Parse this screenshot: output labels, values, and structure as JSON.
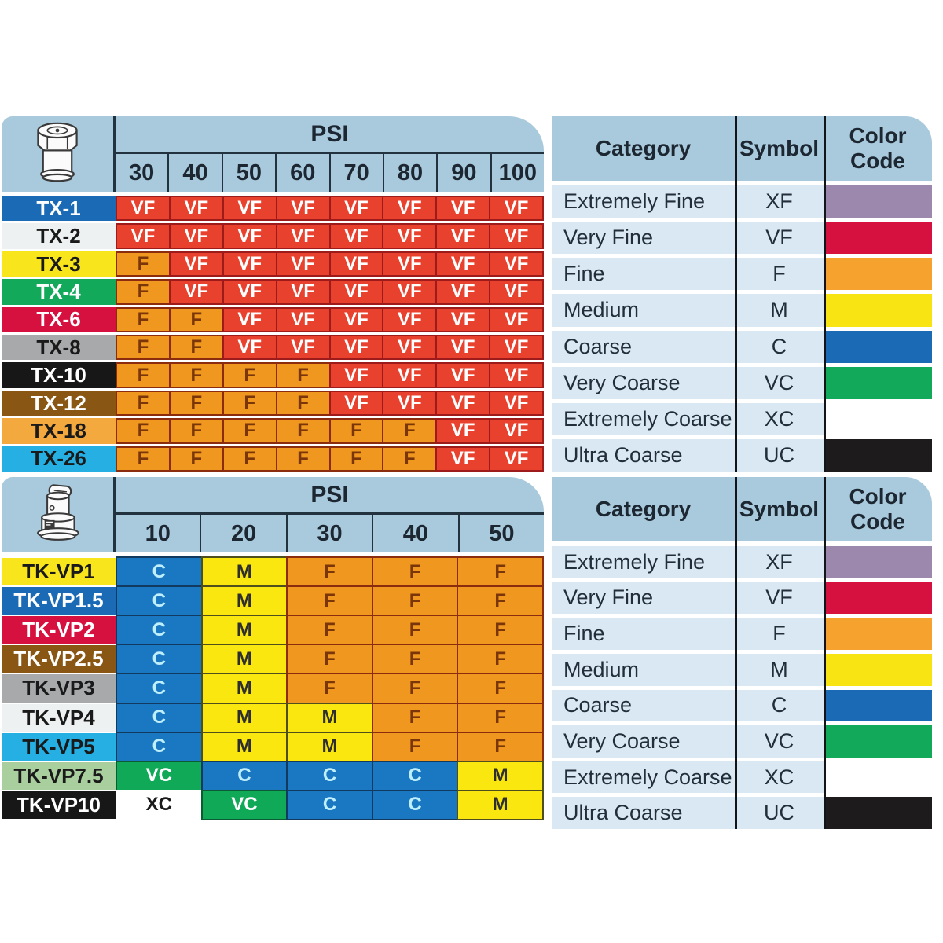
{
  "page": {
    "background": "#ffffff",
    "header_bg": "#a9cadd",
    "legend_row_bg": "#d9e8f2"
  },
  "cell_styles": {
    "VF": {
      "bg": "#e8412e",
      "border": "#9e1b1b",
      "fg": "#ffffff"
    },
    "F": {
      "bg": "#f0971f",
      "border": "#8b2c0e",
      "fg": "#7a3508"
    },
    "M": {
      "bg": "#f9e70f",
      "border": "#4f4f1e",
      "fg": "#2e2e2e"
    },
    "C": {
      "bg": "#1a78c2",
      "border": "#123a5e",
      "fg": "#bfeffc"
    },
    "VC": {
      "bg": "#0fa957",
      "border": "#0b5c33",
      "fg": "#ffffff"
    },
    "XC": {
      "bg": "#ffffff",
      "border": "transparent",
      "fg": "#1a1a1a"
    }
  },
  "chart_data": [
    {
      "type": "table",
      "name": "tx-nozzle-droplet-size-by-psi",
      "icon": "tx-cone-nozzle-icon",
      "psi_label": "PSI",
      "columns": [
        "30",
        "40",
        "50",
        "60",
        "70",
        "80",
        "90",
        "100"
      ],
      "rows": [
        {
          "label": "TX-1",
          "color": "#1a6ab5",
          "text_color": "#ffffff",
          "values": [
            "VF",
            "VF",
            "VF",
            "VF",
            "VF",
            "VF",
            "VF",
            "VF"
          ]
        },
        {
          "label": "TX-2",
          "color": "#eef1f2",
          "text_color": "#1a1a1a",
          "values": [
            "VF",
            "VF",
            "VF",
            "VF",
            "VF",
            "VF",
            "VF",
            "VF"
          ]
        },
        {
          "label": "TX-3",
          "color": "#f9e51c",
          "text_color": "#1a1a1a",
          "values": [
            "F",
            "VF",
            "VF",
            "VF",
            "VF",
            "VF",
            "VF",
            "VF"
          ]
        },
        {
          "label": "TX-4",
          "color": "#12a95b",
          "text_color": "#ffffff",
          "values": [
            "F",
            "VF",
            "VF",
            "VF",
            "VF",
            "VF",
            "VF",
            "VF"
          ]
        },
        {
          "label": "TX-6",
          "color": "#d6113f",
          "text_color": "#ffffff",
          "values": [
            "F",
            "F",
            "VF",
            "VF",
            "VF",
            "VF",
            "VF",
            "VF"
          ]
        },
        {
          "label": "TX-8",
          "color": "#a7a9ab",
          "text_color": "#1a1a1a",
          "values": [
            "F",
            "F",
            "VF",
            "VF",
            "VF",
            "VF",
            "VF",
            "VF"
          ]
        },
        {
          "label": "TX-10",
          "color": "#171717",
          "text_color": "#ffffff",
          "values": [
            "F",
            "F",
            "F",
            "F",
            "VF",
            "VF",
            "VF",
            "VF"
          ]
        },
        {
          "label": "TX-12",
          "color": "#8a5614",
          "text_color": "#ffffff",
          "values": [
            "F",
            "F",
            "F",
            "F",
            "VF",
            "VF",
            "VF",
            "VF"
          ]
        },
        {
          "label": "TX-18",
          "color": "#f3a93d",
          "text_color": "#1a1a1a",
          "values": [
            "F",
            "F",
            "F",
            "F",
            "F",
            "F",
            "VF",
            "VF"
          ]
        },
        {
          "label": "TX-26",
          "color": "#25afe3",
          "text_color": "#1a1a1a",
          "values": [
            "F",
            "F",
            "F",
            "F",
            "F",
            "F",
            "VF",
            "VF"
          ]
        }
      ]
    },
    {
      "type": "table",
      "name": "tk-vp-nozzle-droplet-size-by-psi",
      "icon": "tk-vp-cap-nozzle-icon",
      "psi_label": "PSI",
      "columns": [
        "10",
        "20",
        "30",
        "40",
        "50"
      ],
      "rows": [
        {
          "label": "TK-VP1",
          "color": "#f9e51c",
          "text_color": "#1a1a1a",
          "values": [
            "C",
            "M",
            "F",
            "F",
            "F"
          ]
        },
        {
          "label": "TK-VP1.5",
          "color": "#1a6ab5",
          "text_color": "#ffffff",
          "values": [
            "C",
            "M",
            "F",
            "F",
            "F"
          ]
        },
        {
          "label": "TK-VP2",
          "color": "#d6113f",
          "text_color": "#ffffff",
          "values": [
            "C",
            "M",
            "F",
            "F",
            "F"
          ]
        },
        {
          "label": "TK-VP2.5",
          "color": "#8a5614",
          "text_color": "#ffffff",
          "values": [
            "C",
            "M",
            "F",
            "F",
            "F"
          ]
        },
        {
          "label": "TK-VP3",
          "color": "#a7a9ab",
          "text_color": "#1a1a1a",
          "values": [
            "C",
            "M",
            "F",
            "F",
            "F"
          ]
        },
        {
          "label": "TK-VP4",
          "color": "#eef1f2",
          "text_color": "#1a1a1a",
          "values": [
            "C",
            "M",
            "M",
            "F",
            "F"
          ]
        },
        {
          "label": "TK-VP5",
          "color": "#25afe3",
          "text_color": "#1a1a1a",
          "values": [
            "C",
            "M",
            "M",
            "F",
            "F"
          ]
        },
        {
          "label": "TK-VP7.5",
          "color": "#a9cf9e",
          "text_color": "#1a1a1a",
          "values": [
            "VC",
            "C",
            "C",
            "C",
            "M"
          ]
        },
        {
          "label": "TK-VP10",
          "color": "#171717",
          "text_color": "#ffffff",
          "values": [
            "XC",
            "VC",
            "C",
            "C",
            "M"
          ]
        }
      ]
    },
    {
      "type": "table",
      "name": "droplet-size-category-legend",
      "headers": {
        "category": "Category",
        "symbol": "Symbol",
        "color_code": "Color Code"
      },
      "rows": [
        {
          "category": "Extremely Fine",
          "symbol": "XF",
          "color": "#9c87ad"
        },
        {
          "category": "Very Fine",
          "symbol": "VF",
          "color": "#d6113f"
        },
        {
          "category": "Fine",
          "symbol": "F",
          "color": "#f5a22e"
        },
        {
          "category": "Medium",
          "symbol": "M",
          "color": "#f8e412"
        },
        {
          "category": "Coarse",
          "symbol": "C",
          "color": "#1a6ab5"
        },
        {
          "category": "Very Coarse",
          "symbol": "VC",
          "color": "#12a95b"
        },
        {
          "category": "Extremely Coarse",
          "symbol": "XC",
          "color": "#ffffff"
        },
        {
          "category": "Ultra Coarse",
          "symbol": "UC",
          "color": "#1d1b1b"
        }
      ]
    }
  ]
}
